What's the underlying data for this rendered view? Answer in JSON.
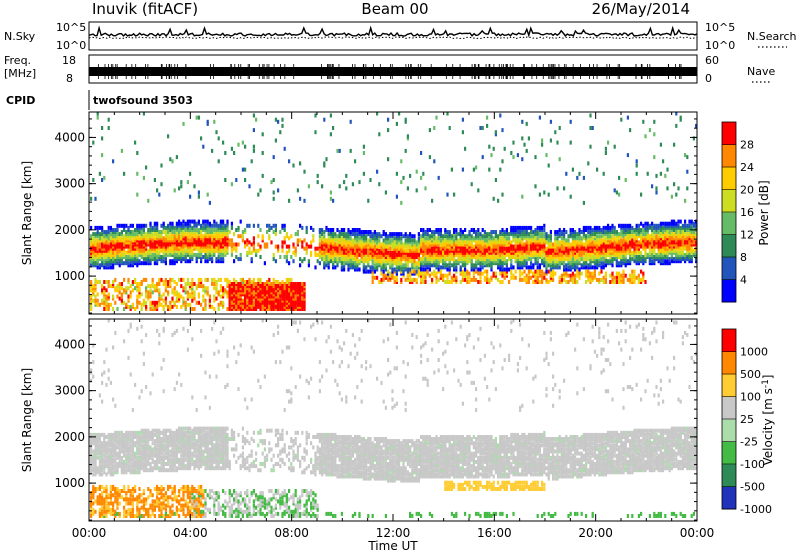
{
  "header": {
    "station": "Inuvik (fitACF)",
    "beam": "Beam 00",
    "date": "26/May/2014"
  },
  "chart_data": {
    "type": "heatmap",
    "x_axis": {
      "label": "Time UT",
      "ticks": [
        "00:00",
        "04:00",
        "08:00",
        "12:00",
        "16:00",
        "20:00",
        "00:00"
      ],
      "range_hours": [
        0,
        24
      ]
    },
    "top_strips": {
      "nsky": {
        "left_label": "N.Sky",
        "ticks_left": [
          "10^5",
          "10^0"
        ],
        "right_label": "N.Search",
        "ticks_right": [
          "10^5",
          "10^0"
        ]
      },
      "freq": {
        "left_label_line1": "Freq.",
        "left_label_line2": "[MHz]",
        "ticks_left": [
          "18",
          "8"
        ],
        "right_label": "Nave",
        "ticks_right": [
          "60",
          "0"
        ]
      },
      "cpid": {
        "label": "CPID",
        "value": "twofsound 3503"
      }
    },
    "panels": [
      {
        "name": "power",
        "ylabel": "Slant Range [km]",
        "yticks": [
          "1000",
          "2000",
          "3000",
          "4000"
        ],
        "yrange_km": [
          180,
          4550
        ],
        "colorbar_label": "Power [dB]",
        "colorbar_ticks": [
          "4",
          "8",
          "12",
          "16",
          "20",
          "24",
          "28"
        ],
        "colorbar_colors": [
          "#0000ff",
          "#2255bb",
          "#2e8b57",
          "#66bb66",
          "#ccdd22",
          "#ffcc00",
          "#ff8800",
          "#ff0000"
        ]
      },
      {
        "name": "velocity",
        "ylabel": "Slant Range [km]",
        "yticks": [
          "1000",
          "2000",
          "3000",
          "4000"
        ],
        "yrange_km": [
          180,
          4550
        ],
        "colorbar_label": "Velocity [m s^-1]",
        "colorbar_ticks": [
          "1000",
          "500",
          "100",
          "25",
          "-25",
          "-100",
          "-500",
          "-1000"
        ],
        "colorbar_colors": [
          "#2233bb",
          "#2e8b57",
          "#44bb44",
          "#aaddaa",
          "#c8c8c8",
          "#ffcc33",
          "#ff8800",
          "#ff0000"
        ]
      }
    ]
  }
}
